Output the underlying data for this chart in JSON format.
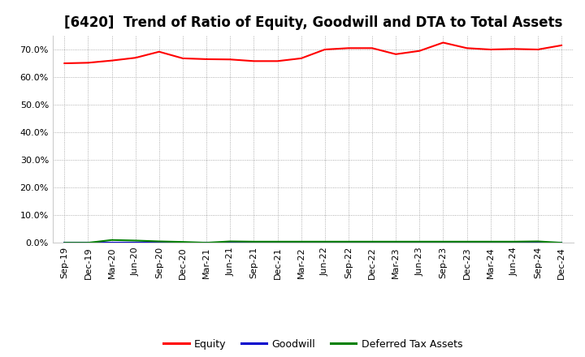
{
  "title": "[6420]  Trend of Ratio of Equity, Goodwill and DTA to Total Assets",
  "x_labels": [
    "Sep-19",
    "Dec-19",
    "Mar-20",
    "Jun-20",
    "Sep-20",
    "Dec-20",
    "Mar-21",
    "Jun-21",
    "Sep-21",
    "Dec-21",
    "Mar-22",
    "Jun-22",
    "Sep-22",
    "Dec-22",
    "Mar-23",
    "Jun-23",
    "Sep-23",
    "Dec-23",
    "Mar-24",
    "Jun-24",
    "Sep-24",
    "Dec-24"
  ],
  "equity": [
    0.65,
    0.652,
    0.66,
    0.67,
    0.692,
    0.668,
    0.665,
    0.664,
    0.658,
    0.658,
    0.668,
    0.7,
    0.705,
    0.705,
    0.683,
    0.695,
    0.725,
    0.705,
    0.7,
    0.702,
    0.7,
    0.715
  ],
  "goodwill": [
    0.0,
    0.0,
    0.0,
    0.0,
    0.0,
    0.0,
    0.0,
    0.0,
    0.0,
    0.0,
    0.0,
    0.0,
    0.0,
    0.0,
    0.0,
    0.0,
    0.0,
    0.0,
    0.0,
    0.0,
    0.0,
    0.0
  ],
  "dta": [
    0.0,
    0.0,
    0.01,
    0.008,
    0.005,
    0.003,
    0.0,
    0.005,
    0.004,
    0.004,
    0.004,
    0.004,
    0.004,
    0.004,
    0.004,
    0.004,
    0.004,
    0.004,
    0.004,
    0.004,
    0.005,
    0.0
  ],
  "equity_color": "#ff0000",
  "goodwill_color": "#0000cc",
  "dta_color": "#008000",
  "ylim": [
    0.0,
    0.75
  ],
  "yticks": [
    0.0,
    0.1,
    0.2,
    0.3,
    0.4,
    0.5,
    0.6,
    0.7
  ],
  "background_color": "#ffffff",
  "plot_bg_color": "#ffffff",
  "grid_color": "#999999",
  "title_fontsize": 12,
  "tick_fontsize": 8,
  "legend_labels": [
    "Equity",
    "Goodwill",
    "Deferred Tax Assets"
  ]
}
